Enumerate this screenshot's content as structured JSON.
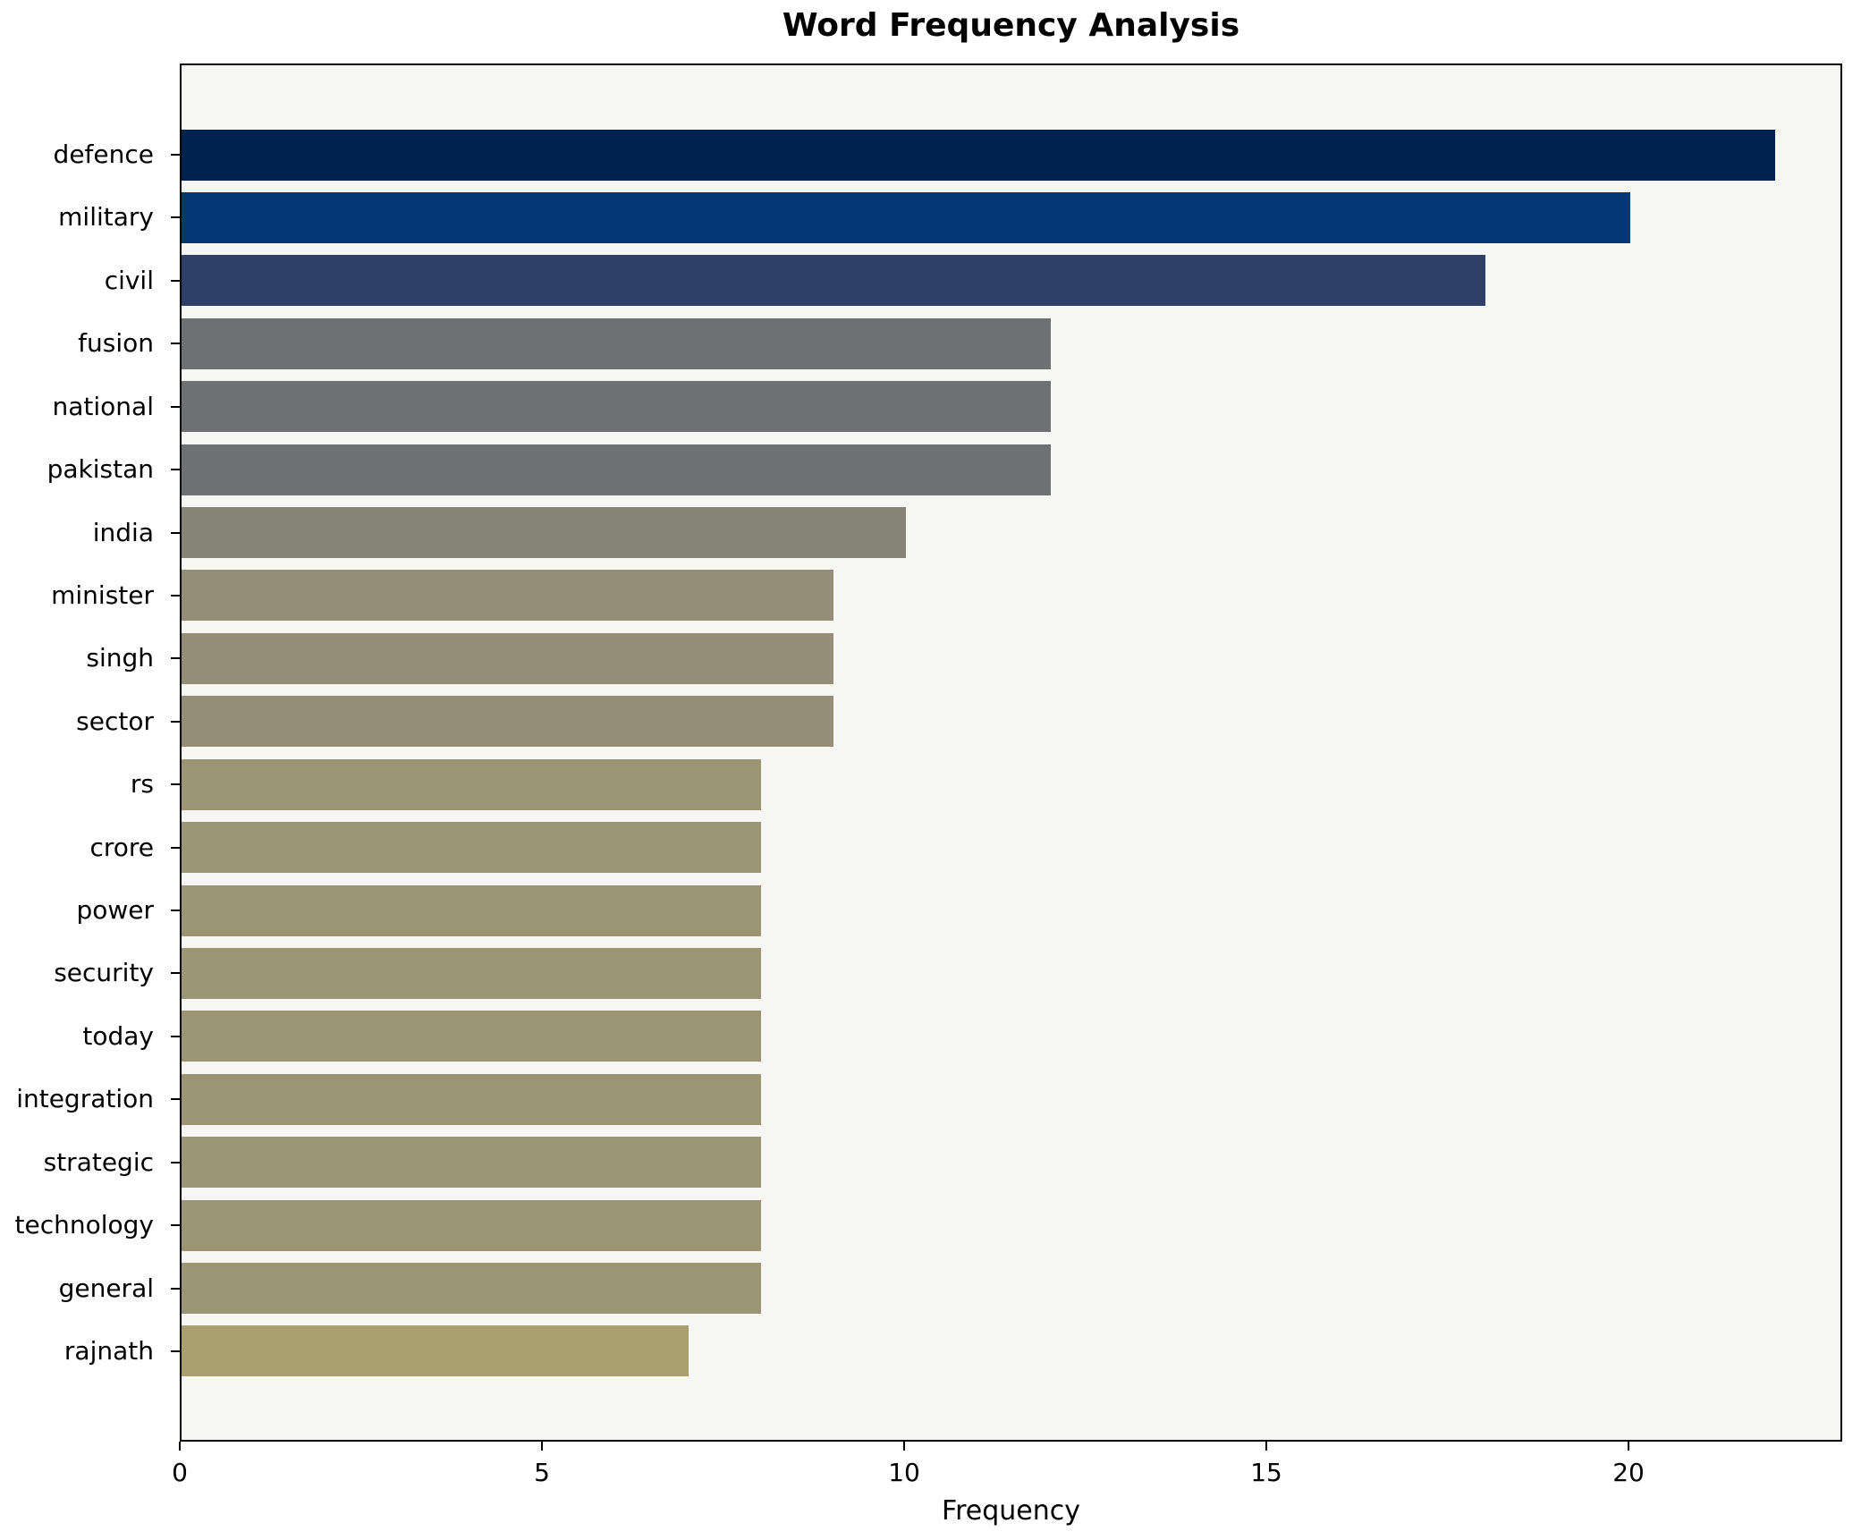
{
  "title": "Word Frequency Analysis",
  "xlabel": "Frequency",
  "chart_data": {
    "type": "bar",
    "orientation": "horizontal",
    "title": "Word Frequency Analysis",
    "xlabel": "Frequency",
    "ylabel": "",
    "categories": [
      "defence",
      "military",
      "civil",
      "fusion",
      "national",
      "pakistan",
      "india",
      "minister",
      "singh",
      "sector",
      "rs",
      "crore",
      "power",
      "security",
      "today",
      "integration",
      "strategic",
      "technology",
      "general",
      "rajnath"
    ],
    "values": [
      22,
      20,
      18,
      12,
      12,
      12,
      10,
      9,
      9,
      9,
      8,
      8,
      8,
      8,
      8,
      8,
      8,
      8,
      8,
      7
    ],
    "bar_colors": [
      "#00224e",
      "#033775",
      "#2e4068",
      "#6f7072",
      "#6f7072",
      "#6f7072",
      "#868476",
      "#948e77",
      "#948e77",
      "#948e77",
      "#9c9574",
      "#9c9574",
      "#9c9574",
      "#9c9574",
      "#9c9574",
      "#9c9574",
      "#9c9574",
      "#9c9574",
      "#9c9574",
      "#aa9f6e"
    ],
    "xlim": [
      0,
      22.95
    ],
    "xticks": [
      0,
      5,
      10,
      15,
      20
    ],
    "grid": false,
    "legend": null,
    "plot_bg": "#f6f6f5",
    "fig_bg": "#ffffff",
    "spine_color": "#000000"
  }
}
